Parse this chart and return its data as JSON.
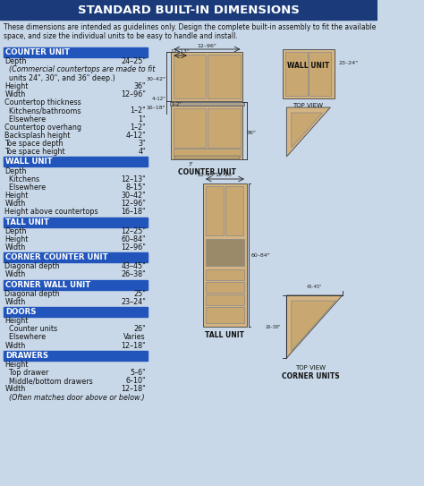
{
  "title": "STANDARD BUILT-IN DIMENSIONS",
  "intro_text": "These dimensions are intended as guidelines only. Design the complete built-in assembly to fit the available\nspace, and size the individual units to be easy to handle and install.",
  "bg_color": "#c8d8e8",
  "header_bg": "#1a3a7a",
  "header_fg": "#ffffff",
  "section_bg": "#2255bb",
  "section_fg": "#ffffff",
  "text_color": "#111111",
  "sections": [
    {
      "title": "COUNTER UNIT",
      "rows": [
        [
          "Depth",
          "24–25\""
        ],
        [
          "  (Commercial countertops are made to fit",
          ""
        ],
        [
          "  units 24\", 30\", and 36\" deep.)",
          ""
        ],
        [
          "Height",
          "36\""
        ],
        [
          "Width",
          "12–96\""
        ],
        [
          "Countertop thickness",
          ""
        ],
        [
          "  Kitchens/bathrooms",
          "1–2\""
        ],
        [
          "  Elsewhere",
          "1\""
        ],
        [
          "Countertop overhang",
          "1–2\""
        ],
        [
          "Backsplash height",
          "4–12\""
        ],
        [
          "Toe space depth",
          "3\""
        ],
        [
          "Toe space height",
          "4\""
        ]
      ]
    },
    {
      "title": "WALL UNIT",
      "rows": [
        [
          "Depth",
          ""
        ],
        [
          "  Kitchens",
          "12–13\""
        ],
        [
          "  Elsewhere",
          "8–15\""
        ],
        [
          "Height",
          "30–42\""
        ],
        [
          "Width",
          "12–96\""
        ],
        [
          "Height above countertops",
          "16–18\""
        ]
      ]
    },
    {
      "title": "TALL UNIT",
      "rows": [
        [
          "Depth",
          "12–25\""
        ],
        [
          "Height",
          "60–84\""
        ],
        [
          "Width",
          "12–96\""
        ]
      ]
    },
    {
      "title": "CORNER COUNTER UNIT",
      "rows": [
        [
          "Diagonal depth",
          "43–45\""
        ],
        [
          "Width",
          "26–38\""
        ]
      ]
    },
    {
      "title": "CORNER WALL UNIT",
      "rows": [
        [
          "Diagonal depth",
          "25\""
        ],
        [
          "Width",
          "23–24\""
        ]
      ]
    },
    {
      "title": "DOORS",
      "rows": [
        [
          "Height",
          ""
        ],
        [
          "  Counter units",
          "26\""
        ],
        [
          "  Elsewhere",
          "Varies"
        ],
        [
          "Width",
          "12–18\""
        ]
      ]
    },
    {
      "title": "DRAWERS",
      "rows": [
        [
          "Height",
          ""
        ],
        [
          "  Top drawer",
          "5–6\""
        ],
        [
          "  Middle/bottom drawers",
          "6–10\""
        ],
        [
          "Width",
          "12–18\""
        ],
        [
          "  (Often matches door above or below.)",
          ""
        ]
      ]
    }
  ]
}
